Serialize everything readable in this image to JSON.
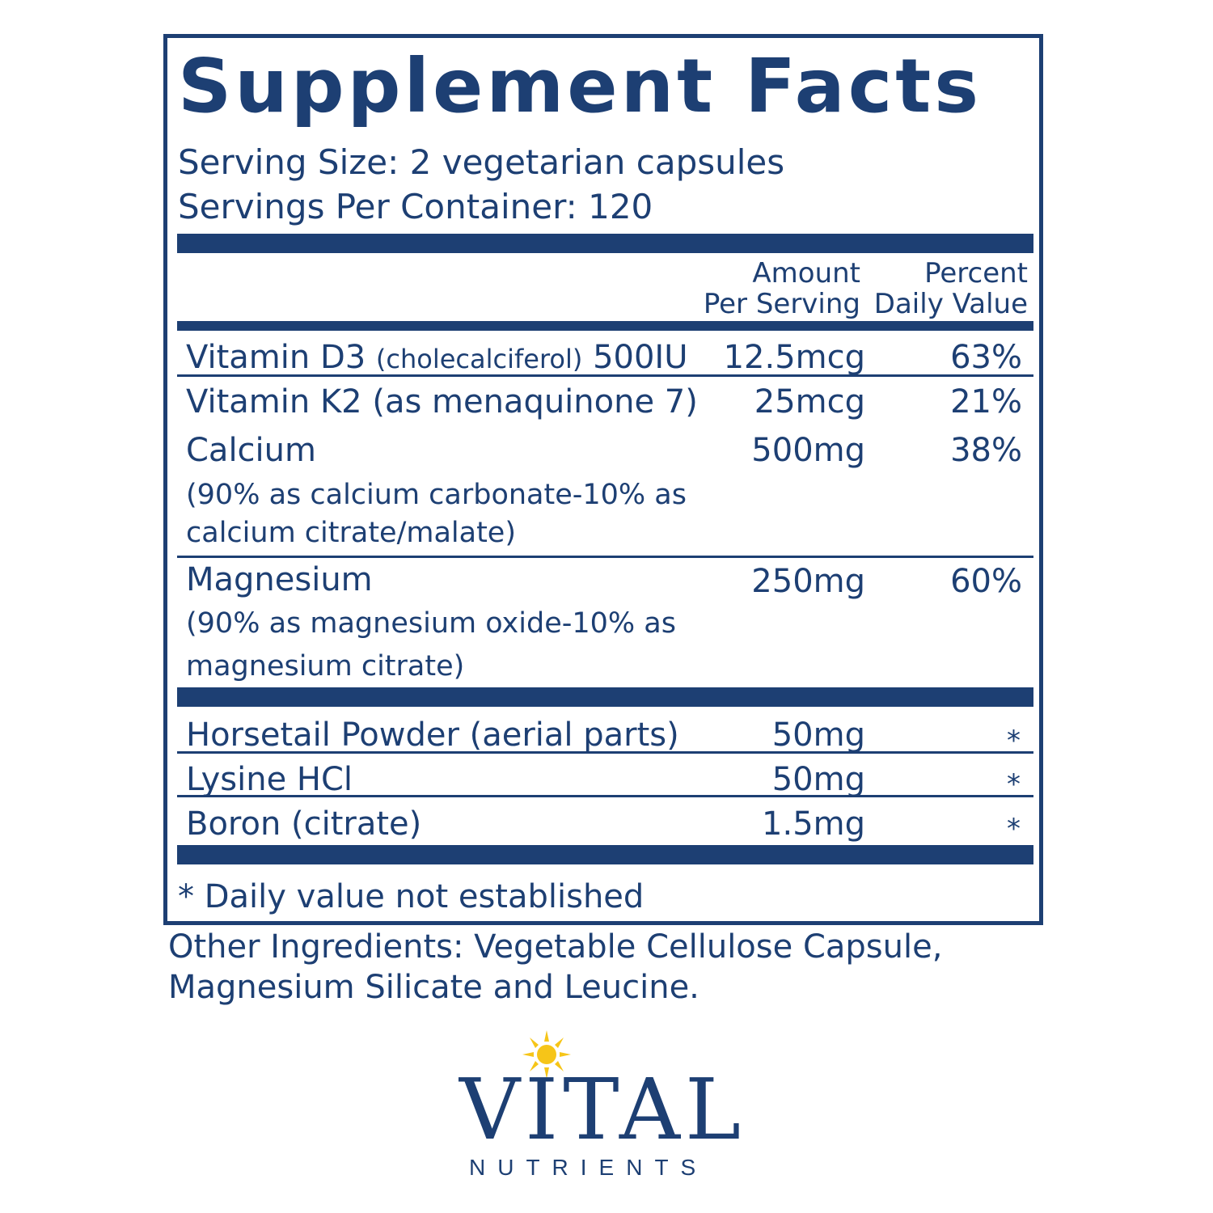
{
  "label": {
    "title": "Supplement Facts",
    "serving_size": "Serving Size: 2 vegetarian capsules",
    "servings_per_container": "Servings Per Container: 120",
    "col_amount_line1": "Amount",
    "col_amount_line2": "Per Serving",
    "col_dv_line1": "Percent",
    "col_dv_line2": "Daily Value",
    "rows": [
      {
        "name": "Vitamin D3",
        "name_detail": "(cholecalciferol)",
        "name_extra": "500IU",
        "amount": "12.5mcg",
        "dv": "63%"
      },
      {
        "name": "Vitamin K2 (as menaquinone 7)",
        "amount": "25mcg",
        "dv": "21%"
      },
      {
        "name": "Calcium",
        "sub_line1": "(90% as calcium carbonate-10% as",
        "sub_line2": "calcium citrate/malate)",
        "amount": "500mg",
        "dv": "38%"
      },
      {
        "name": "Magnesium",
        "sub_line1": "(90% as magnesium oxide-10% as",
        "sub_line2": "magnesium citrate)",
        "amount": "250mg",
        "dv": "60%"
      },
      {
        "name": "Horsetail Powder (aerial parts)",
        "amount": "50mg",
        "dv": "*"
      },
      {
        "name": "Lysine HCl",
        "amount": "50mg",
        "dv": "*"
      },
      {
        "name": "Boron (citrate)",
        "amount": "1.5mg",
        "dv": "*"
      }
    ],
    "footnote": "* Daily value not established"
  },
  "other_ingredients": {
    "line1": "Other Ingredients: Vegetable Cellulose Capsule,",
    "line2": "Magnesium Silicate and Leucine."
  },
  "brand": {
    "name": "VITAL",
    "tagline": "NUTRIENTS",
    "primary_color": "#1d3f73",
    "sun_color": "#f6c518"
  }
}
